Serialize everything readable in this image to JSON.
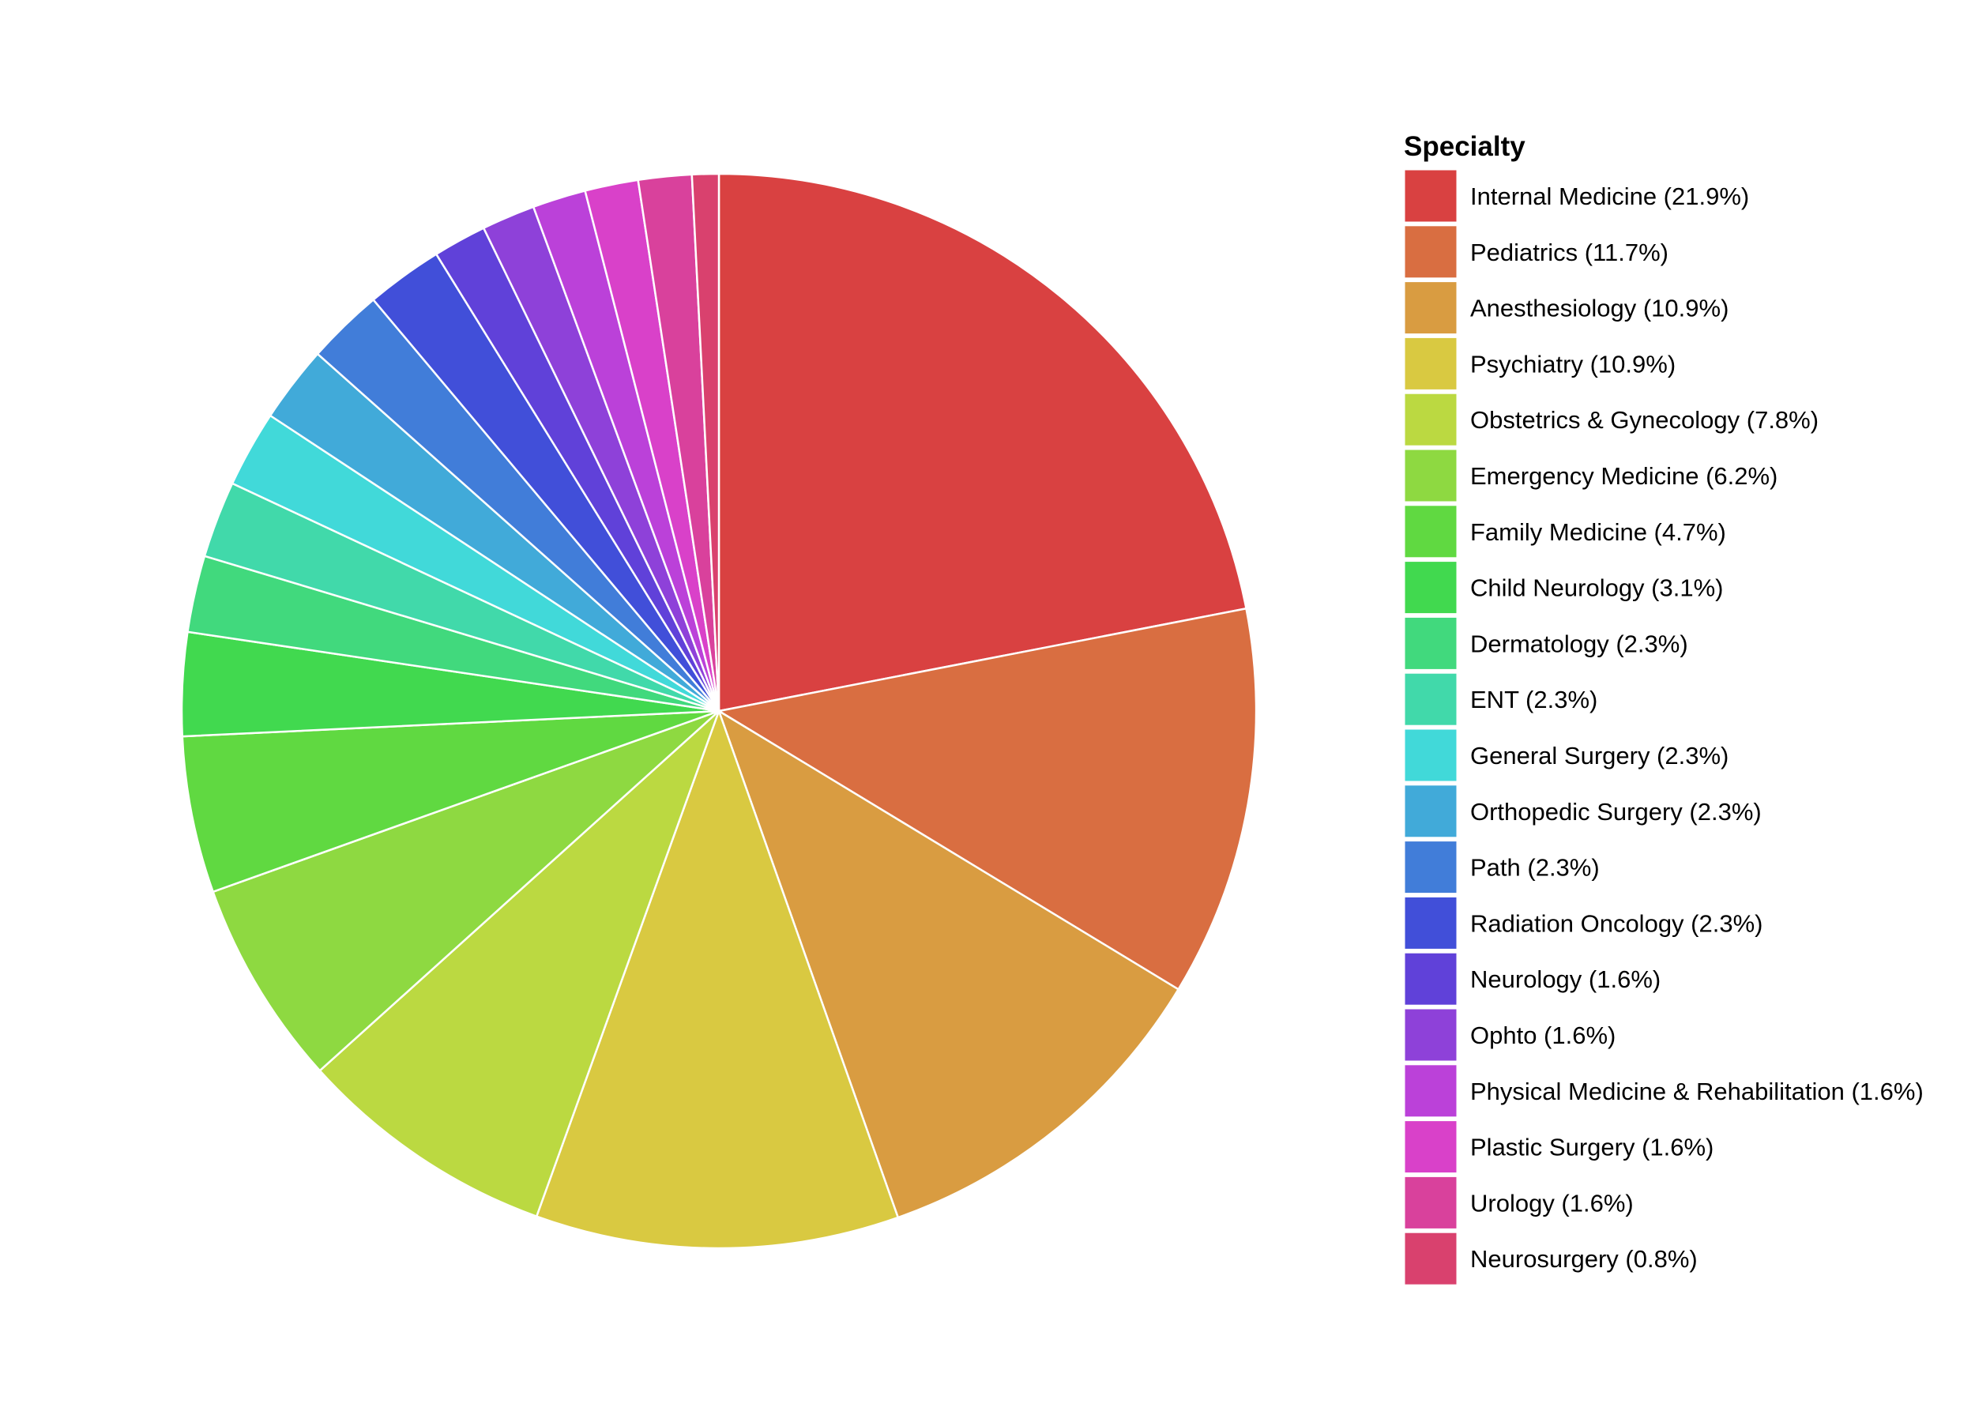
{
  "chart_data": {
    "type": "pie",
    "legend": {
      "title": "Specialty",
      "placement": "right"
    },
    "start_angle_deg": 0,
    "direction": "clockwise",
    "slices": [
      {
        "label": "Internal Medicine (21.9%)",
        "value": 21.9,
        "color": "#D94141"
      },
      {
        "label": "Pediatrics (11.7%)",
        "value": 11.7,
        "color": "#D96E41"
      },
      {
        "label": "Anesthesiology (10.9%)",
        "value": 10.9,
        "color": "#D99C41"
      },
      {
        "label": "Psychiatry (10.9%)",
        "value": 10.9,
        "color": "#D9C941"
      },
      {
        "label": "Obstetrics & Gynecology (7.8%)",
        "value": 7.8,
        "color": "#BBD941"
      },
      {
        "label": "Emergency Medicine (6.2%)",
        "value": 6.2,
        "color": "#8ED941"
      },
      {
        "label": "Family Medicine (4.7%)",
        "value": 4.7,
        "color": "#60D941"
      },
      {
        "label": "Child Neurology (3.1%)",
        "value": 3.1,
        "color": "#41D94F"
      },
      {
        "label": "Dermatology (2.3%)",
        "value": 2.3,
        "color": "#41D97D"
      },
      {
        "label": "ENT (2.3%)",
        "value": 2.3,
        "color": "#41D9AA"
      },
      {
        "label": "General Surgery (2.3%)",
        "value": 2.3,
        "color": "#41D9D9"
      },
      {
        "label": "Orthopedic Surgery (2.3%)",
        "value": 2.3,
        "color": "#41AAD9"
      },
      {
        "label": "Path (2.3%)",
        "value": 2.3,
        "color": "#417DD9"
      },
      {
        "label": "Radiation Oncology (2.3%)",
        "value": 2.3,
        "color": "#414FD9"
      },
      {
        "label": "Neurology (1.6%)",
        "value": 1.6,
        "color": "#6041D9"
      },
      {
        "label": "Ophto (1.6%)",
        "value": 1.6,
        "color": "#8E41D9"
      },
      {
        "label": "Physical Medicine & Rehabilitation (1.6%)",
        "value": 1.6,
        "color": "#BB41D9"
      },
      {
        "label": "Plastic Surgery (1.6%)",
        "value": 1.6,
        "color": "#D941C9"
      },
      {
        "label": "Urology (1.6%)",
        "value": 1.6,
        "color": "#D9419C"
      },
      {
        "label": "Neurosurgery (0.8%)",
        "value": 0.8,
        "color": "#D9416E"
      }
    ]
  }
}
